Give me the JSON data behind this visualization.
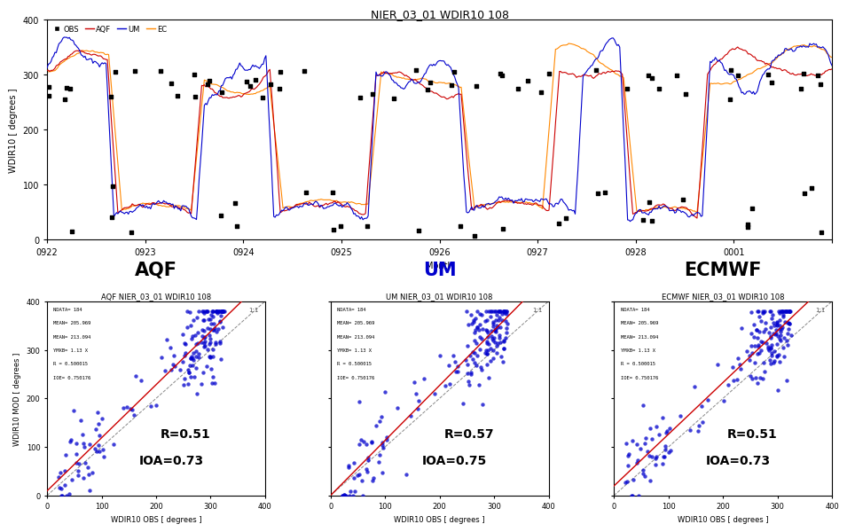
{
  "timeseries_title": "NIER_03_01 WDIR10 108",
  "ylabel_ts": "WDIR10 [ degrees ]",
  "xlabel_ts": "Month",
  "xtick_labels": [
    "0922",
    "0923",
    "0924",
    "0925",
    "0926",
    "0927",
    "0928",
    "0001",
    ""
  ],
  "ylim_ts": [
    0,
    400
  ],
  "yticks_ts": [
    0,
    100,
    200,
    300,
    400
  ],
  "legend_obs": "OBS",
  "legend_aqf": "AQF",
  "legend_um": "UM",
  "legend_ecmwf": "EC",
  "color_obs": "#000000",
  "color_aqf": "#cc0000",
  "color_um": "#0000cc",
  "color_ecmwf": "#ff8800",
  "scatter_titles": [
    "AQF NIER_03_01 WDIR10 108",
    "UM NIER_03_01 WDIR10 108",
    "ECMWF NIER_03_01 WDIR10 108"
  ],
  "xlabel_scatter": "WDIR10 OBS [ degrees ]",
  "ylabel_scatter": "WDIR10 MOD [ degrees ]",
  "xlim_scatter": [
    0,
    400
  ],
  "ylim_scatter": [
    0,
    400
  ],
  "xticks_scatter": [
    0,
    100,
    200,
    300,
    400
  ],
  "yticks_scatter": [
    0,
    100,
    200,
    300,
    400
  ],
  "R_values": [
    0.51,
    0.57,
    0.51
  ],
  "IOA_values": [
    0.73,
    0.75,
    0.73
  ],
  "scatter_dot_color": "#0000cc",
  "scatter_dot_size": 10,
  "reg_line_color": "#cc0000",
  "one_one_color": "#888888",
  "background_color": "#ffffff",
  "label_colors": [
    "#000000",
    "#0000cc",
    "#000000"
  ],
  "label_names": [
    "AQF",
    "UM",
    "ECMWF"
  ]
}
